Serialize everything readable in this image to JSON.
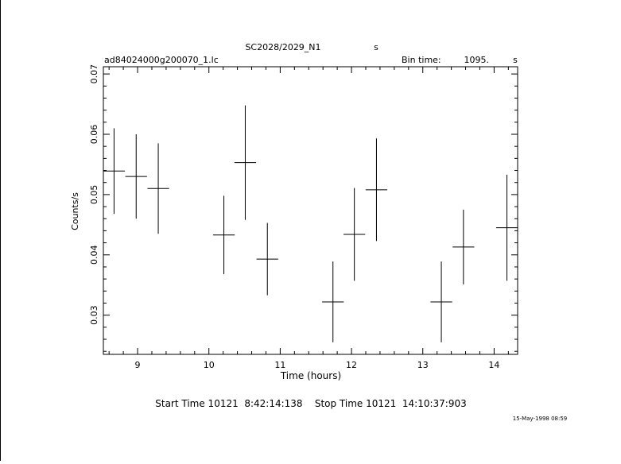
{
  "header": {
    "title": "SC2028/2029_N1",
    "title_suffix": "s",
    "filename": "ad84024000g200070_1.lc",
    "bin_time_label": "Bin time:",
    "bin_time_value": "1095.",
    "bin_time_unit": "s"
  },
  "footer": {
    "time_range": "Start Time 10121  8:42:14:138    Stop Time 10121  14:10:37:903",
    "timestamp": "15-May-1998 08:59"
  },
  "chart_data": {
    "type": "scatter",
    "xlabel": "Time (hours)",
    "ylabel": "Counts/s",
    "xlim": [
      8.52,
      14.33
    ],
    "ylim": [
      0.0235,
      0.0712
    ],
    "x_ticks": [
      9,
      10,
      11,
      12,
      13,
      14
    ],
    "y_ticks": [
      0.03,
      0.04,
      0.05,
      0.06,
      0.07
    ],
    "y_tick_labels": [
      "0.03",
      "0.04",
      "0.05",
      "0.06",
      "0.07"
    ],
    "x_bin_halfwidth": 0.152,
    "points": [
      {
        "x": 8.67,
        "y": 0.0539,
        "yerr": 0.0071
      },
      {
        "x": 8.98,
        "y": 0.053,
        "yerr": 0.007
      },
      {
        "x": 9.29,
        "y": 0.051,
        "yerr": 0.0075
      },
      {
        "x": 10.21,
        "y": 0.0433,
        "yerr": 0.0065
      },
      {
        "x": 10.51,
        "y": 0.0553,
        "yerr": 0.0095
      },
      {
        "x": 10.82,
        "y": 0.0393,
        "yerr": 0.006
      },
      {
        "x": 11.74,
        "y": 0.0322,
        "yerr": 0.0067
      },
      {
        "x": 12.04,
        "y": 0.0434,
        "yerr": 0.0077
      },
      {
        "x": 12.35,
        "y": 0.0508,
        "yerr": 0.0085
      },
      {
        "x": 13.26,
        "y": 0.0322,
        "yerr": 0.0067
      },
      {
        "x": 13.57,
        "y": 0.0413,
        "yerr": 0.0062
      },
      {
        "x": 14.18,
        "y": 0.0445,
        "yerr": 0.0088
      }
    ],
    "grid": false,
    "legend": "none"
  }
}
